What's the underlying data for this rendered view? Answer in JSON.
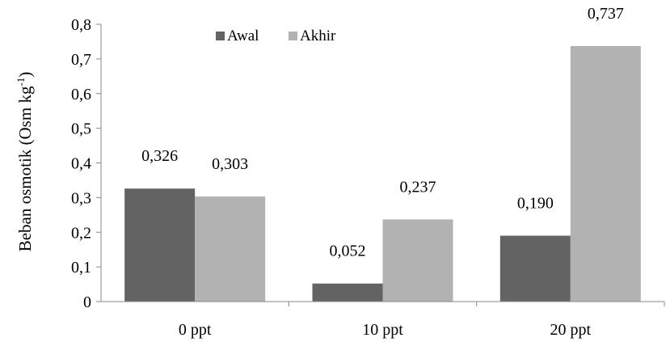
{
  "chart_data": {
    "type": "bar",
    "categories": [
      "0 ppt",
      "10 ppt",
      "20 ppt"
    ],
    "series": [
      {
        "name": "Awal",
        "values": [
          0.326,
          0.052,
          0.19
        ],
        "labels": [
          "0,326",
          "0,052",
          "0,190"
        ],
        "color": "#636363"
      },
      {
        "name": "Akhir",
        "values": [
          0.303,
          0.237,
          0.737
        ],
        "labels": [
          "0,303",
          "0,237",
          "0,737"
        ],
        "color": "#b2b2b2"
      }
    ],
    "ylabel_main": "Beban osmotik (Osm kg",
    "ylabel_sup": "-1",
    "ylabel_end": ")",
    "ylim": [
      0,
      0.8
    ],
    "yticks": [
      0,
      0.1,
      0.2,
      0.3,
      0.4,
      0.5,
      0.6,
      0.7,
      0.8
    ],
    "ytick_labels": [
      "0",
      "0,1",
      "0,2",
      "0,3",
      "0,4",
      "0,5",
      "0,6",
      "0,7",
      "0,8"
    ],
    "grid": false,
    "legend_position": "top-center"
  }
}
